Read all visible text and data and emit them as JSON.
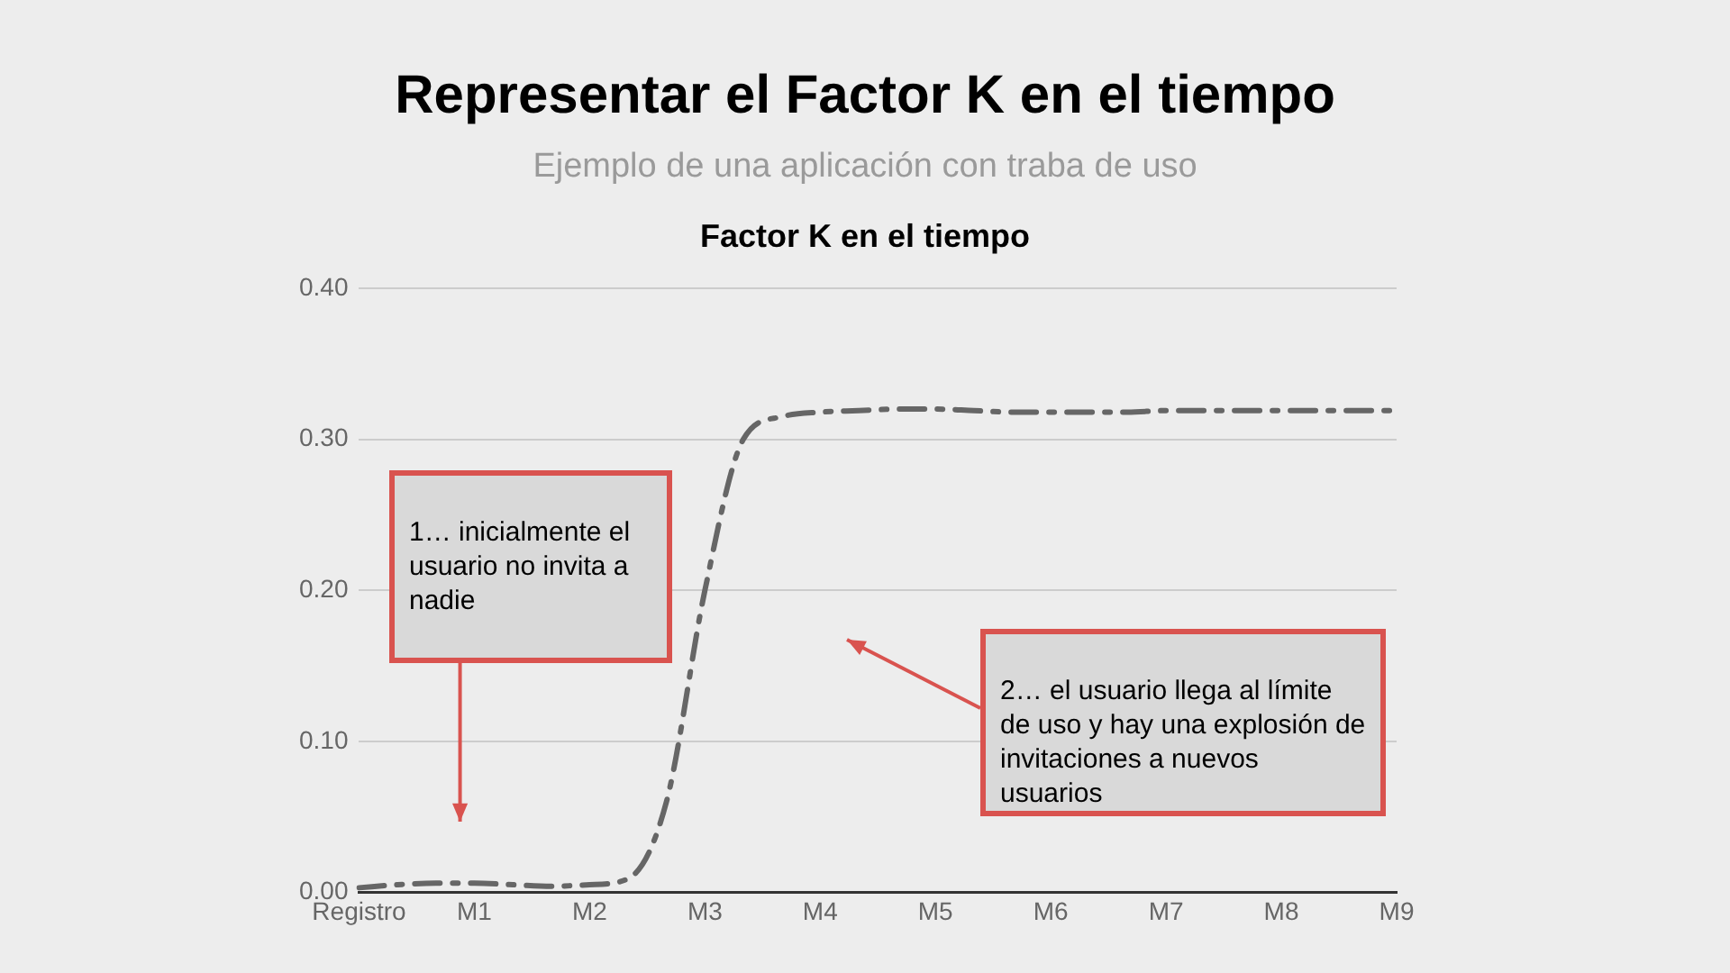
{
  "chart_data": {
    "type": "line",
    "title": "Representar el Factor K en el tiempo",
    "subtitle": "Ejemplo de una aplicación con traba de uso",
    "annotations": [
      "Factor K en el tiempo",
      "1… inicialmente el usuario no invita a nadie",
      "2… el usuario llega al límite de uso y hay una explosión de invitaciones a nuevos usuarios"
    ],
    "categories": [
      "Registro",
      null,
      null,
      "M1",
      null,
      null,
      "M2",
      null,
      null,
      "M3",
      null,
      null,
      "M4",
      null,
      null,
      "M5",
      null,
      null,
      "M6",
      null,
      null,
      "M7",
      null,
      null,
      "M8",
      null,
      null,
      "M9"
    ],
    "series": [
      {
        "color": "#666666",
        "values": [
          0.003,
          0.005,
          0.006,
          0.006,
          0.005,
          0.004,
          0.005,
          0.009,
          0.06,
          0.2,
          0.3,
          0.315,
          0.318,
          0.319,
          0.32,
          0.32,
          0.319,
          0.318,
          0.318,
          0.318,
          0.318,
          0.319,
          0.319,
          0.319,
          0.319,
          0.319,
          0.319,
          0.319
        ]
      }
    ],
    "ylim": [
      0,
      0.4
    ],
    "yticks": [
      {
        "value": 0,
        "label": "0.00"
      },
      {
        "value": 0.1,
        "label": "0.10"
      },
      {
        "value": 0.2,
        "label": "0.20"
      },
      {
        "value": 0.3,
        "label": "0.30"
      },
      {
        "value": 0.4,
        "label": "0.40"
      }
    ],
    "grid": "y",
    "legend": false,
    "marker": "none",
    "line_style": "dashed"
  }
}
